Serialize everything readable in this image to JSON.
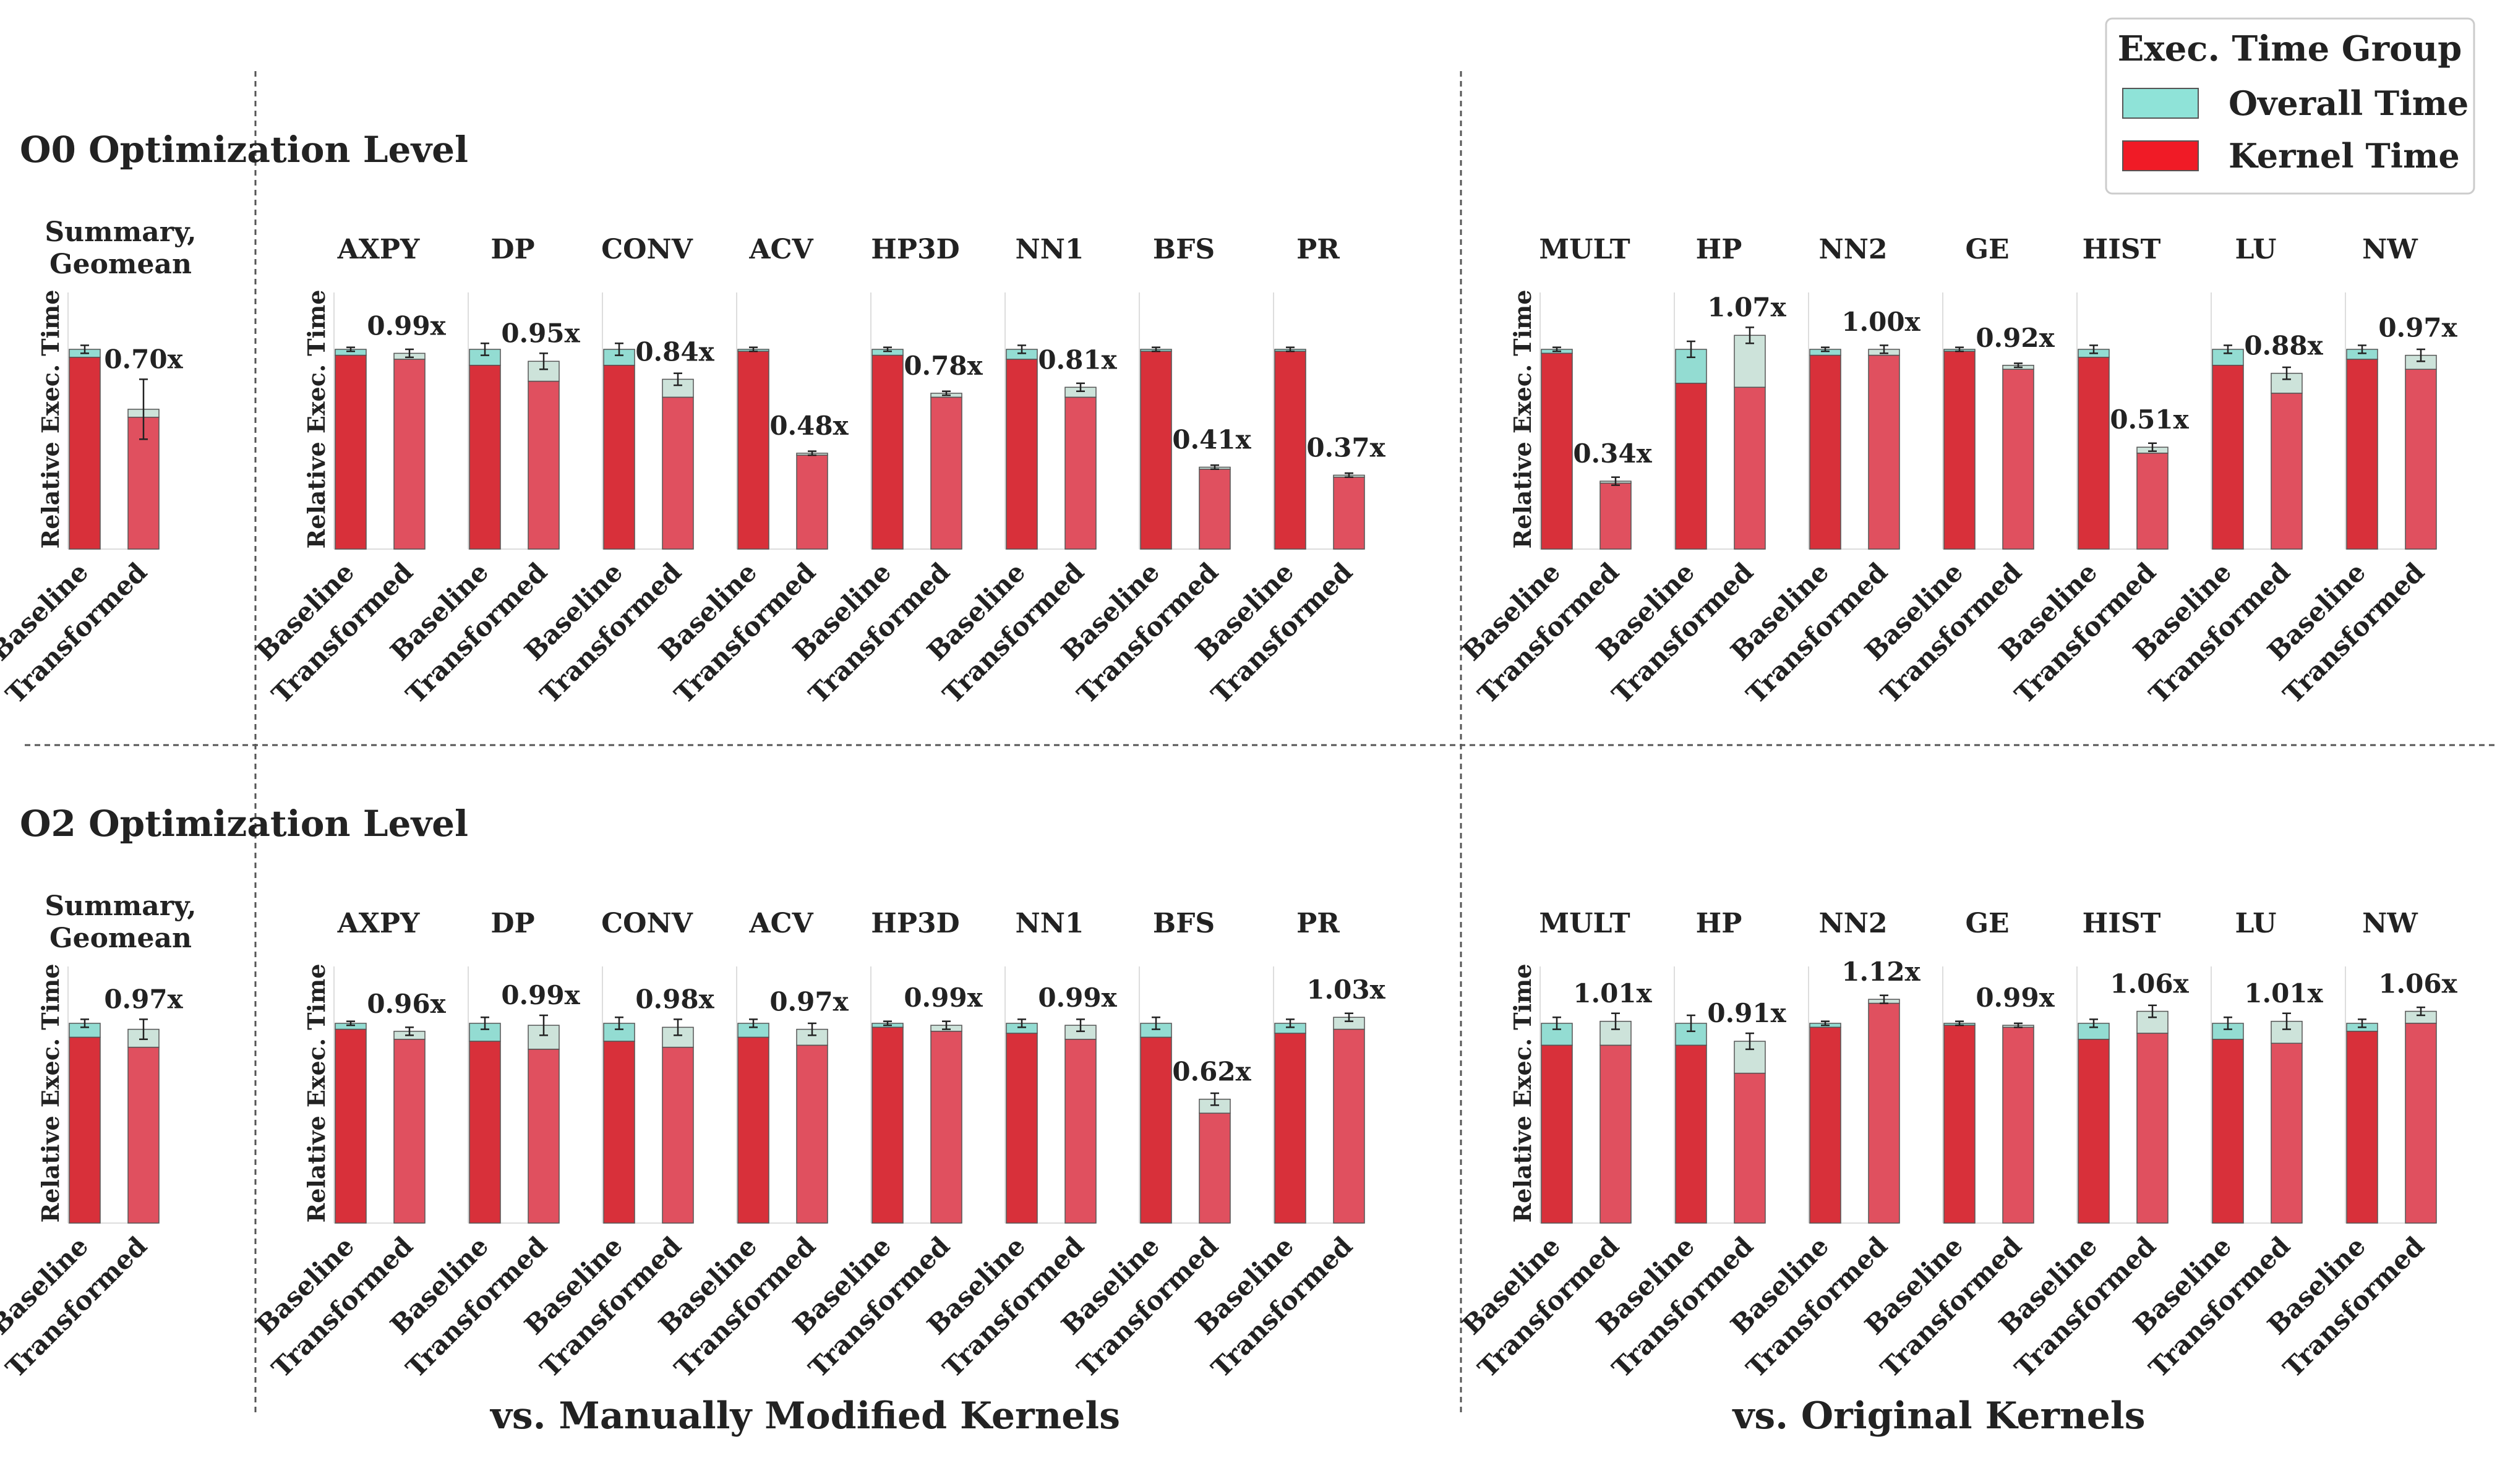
{
  "legend": {
    "title": "Exec. Time Group",
    "items": [
      {
        "label": "Overall Time",
        "color": "#8fe3d8"
      },
      {
        "label": "Kernel Time",
        "color": "#f01b26"
      }
    ]
  },
  "colors": {
    "baseline_kernel": "#d8303a",
    "transformed_kernel": "#e0505f",
    "baseline_overall": "#93dcd2",
    "transformed_overall": "#cde3da",
    "edge": "#555555"
  },
  "group_labels": {
    "manual": "vs. Manually Modified Kernels",
    "original": "vs. Original Kernels"
  },
  "chart_data": {
    "type": "bar",
    "stacked": true,
    "categories": [
      "Baseline",
      "Transformed"
    ],
    "ylabel": "Relative Exec. Time",
    "ylim": [
      0,
      1.25
    ],
    "grid": false,
    "legend_position": "top-right",
    "levels": [
      {
        "title": "O0 Optimization Level",
        "summary": {
          "title_line1": "Summary,",
          "title_line2": "Geomean",
          "speedup": "0.70x",
          "baseline": {
            "overall": 1.0,
            "kernel": 0.96,
            "err": 0.02
          },
          "transformed": {
            "overall": 0.7,
            "kernel": 0.66,
            "err": 0.15
          }
        },
        "manual": [
          {
            "name": "AXPY",
            "speedup": "0.99x",
            "baseline": {
              "overall": 1.0,
              "kernel": 0.97,
              "err": 0.01
            },
            "transformed": {
              "overall": 0.98,
              "kernel": 0.95,
              "err": 0.02
            }
          },
          {
            "name": "DP",
            "speedup": "0.95x",
            "baseline": {
              "overall": 1.0,
              "kernel": 0.92,
              "err": 0.03
            },
            "transformed": {
              "overall": 0.94,
              "kernel": 0.84,
              "err": 0.04
            }
          },
          {
            "name": "CONV",
            "speedup": "0.84x",
            "baseline": {
              "overall": 1.0,
              "kernel": 0.92,
              "err": 0.03
            },
            "transformed": {
              "overall": 0.85,
              "kernel": 0.76,
              "err": 0.03
            }
          },
          {
            "name": "ACV",
            "speedup": "0.48x",
            "baseline": {
              "overall": 1.0,
              "kernel": 0.99,
              "err": 0.01
            },
            "transformed": {
              "overall": 0.48,
              "kernel": 0.47,
              "err": 0.01
            }
          },
          {
            "name": "HP3D",
            "speedup": "0.78x",
            "baseline": {
              "overall": 1.0,
              "kernel": 0.97,
              "err": 0.01
            },
            "transformed": {
              "overall": 0.78,
              "kernel": 0.76,
              "err": 0.01
            }
          },
          {
            "name": "NN1",
            "speedup": "0.81x",
            "baseline": {
              "overall": 1.0,
              "kernel": 0.95,
              "err": 0.02
            },
            "transformed": {
              "overall": 0.81,
              "kernel": 0.76,
              "err": 0.02
            }
          },
          {
            "name": "BFS",
            "speedup": "0.41x",
            "baseline": {
              "overall": 1.0,
              "kernel": 0.99,
              "err": 0.01
            },
            "transformed": {
              "overall": 0.41,
              "kernel": 0.4,
              "err": 0.01
            }
          },
          {
            "name": "PR",
            "speedup": "0.37x",
            "baseline": {
              "overall": 1.0,
              "kernel": 0.99,
              "err": 0.01
            },
            "transformed": {
              "overall": 0.37,
              "kernel": 0.36,
              "err": 0.01
            }
          }
        ],
        "original": [
          {
            "name": "MULT",
            "speedup": "0.34x",
            "baseline": {
              "overall": 1.0,
              "kernel": 0.98,
              "err": 0.01
            },
            "transformed": {
              "overall": 0.34,
              "kernel": 0.33,
              "err": 0.02
            }
          },
          {
            "name": "HP",
            "speedup": "1.07x",
            "baseline": {
              "overall": 1.0,
              "kernel": 0.83,
              "err": 0.04
            },
            "transformed": {
              "overall": 1.07,
              "kernel": 0.81,
              "err": 0.04
            }
          },
          {
            "name": "NN2",
            "speedup": "1.00x",
            "baseline": {
              "overall": 1.0,
              "kernel": 0.97,
              "err": 0.01
            },
            "transformed": {
              "overall": 1.0,
              "kernel": 0.97,
              "err": 0.02
            }
          },
          {
            "name": "GE",
            "speedup": "0.92x",
            "baseline": {
              "overall": 1.0,
              "kernel": 0.99,
              "err": 0.01
            },
            "transformed": {
              "overall": 0.92,
              "kernel": 0.9,
              "err": 0.01
            }
          },
          {
            "name": "HIST",
            "speedup": "0.51x",
            "baseline": {
              "overall": 1.0,
              "kernel": 0.96,
              "err": 0.02
            },
            "transformed": {
              "overall": 0.51,
              "kernel": 0.48,
              "err": 0.02
            }
          },
          {
            "name": "LU",
            "speedup": "0.88x",
            "baseline": {
              "overall": 1.0,
              "kernel": 0.92,
              "err": 0.02
            },
            "transformed": {
              "overall": 0.88,
              "kernel": 0.78,
              "err": 0.03
            }
          },
          {
            "name": "NW",
            "speedup": "0.97x",
            "baseline": {
              "overall": 1.0,
              "kernel": 0.95,
              "err": 0.02
            },
            "transformed": {
              "overall": 0.97,
              "kernel": 0.9,
              "err": 0.03
            }
          }
        ]
      },
      {
        "title": "O2 Optimization Level",
        "summary": {
          "title_line1": "Summary,",
          "title_line2": "Geomean",
          "speedup": "0.97x",
          "baseline": {
            "overall": 1.0,
            "kernel": 0.93,
            "err": 0.02
          },
          "transformed": {
            "overall": 0.97,
            "kernel": 0.88,
            "err": 0.05
          }
        },
        "manual": [
          {
            "name": "AXPY",
            "speedup": "0.96x",
            "baseline": {
              "overall": 1.0,
              "kernel": 0.97,
              "err": 0.01
            },
            "transformed": {
              "overall": 0.96,
              "kernel": 0.92,
              "err": 0.02
            }
          },
          {
            "name": "DP",
            "speedup": "0.99x",
            "baseline": {
              "overall": 1.0,
              "kernel": 0.91,
              "err": 0.03
            },
            "transformed": {
              "overall": 0.99,
              "kernel": 0.87,
              "err": 0.05
            }
          },
          {
            "name": "CONV",
            "speedup": "0.98x",
            "baseline": {
              "overall": 1.0,
              "kernel": 0.91,
              "err": 0.03
            },
            "transformed": {
              "overall": 0.98,
              "kernel": 0.88,
              "err": 0.04
            }
          },
          {
            "name": "ACV",
            "speedup": "0.97x",
            "baseline": {
              "overall": 1.0,
              "kernel": 0.93,
              "err": 0.02
            },
            "transformed": {
              "overall": 0.97,
              "kernel": 0.89,
              "err": 0.03
            }
          },
          {
            "name": "HP3D",
            "speedup": "0.99x",
            "baseline": {
              "overall": 1.0,
              "kernel": 0.98,
              "err": 0.01
            },
            "transformed": {
              "overall": 0.99,
              "kernel": 0.96,
              "err": 0.02
            }
          },
          {
            "name": "NN1",
            "speedup": "0.99x",
            "baseline": {
              "overall": 1.0,
              "kernel": 0.95,
              "err": 0.02
            },
            "transformed": {
              "overall": 0.99,
              "kernel": 0.92,
              "err": 0.03
            }
          },
          {
            "name": "BFS",
            "speedup": "0.62x",
            "baseline": {
              "overall": 1.0,
              "kernel": 0.93,
              "err": 0.03
            },
            "transformed": {
              "overall": 0.62,
              "kernel": 0.55,
              "err": 0.03
            }
          },
          {
            "name": "PR",
            "speedup": "1.03x",
            "baseline": {
              "overall": 1.0,
              "kernel": 0.95,
              "err": 0.02
            },
            "transformed": {
              "overall": 1.03,
              "kernel": 0.97,
              "err": 0.02
            }
          }
        ],
        "original": [
          {
            "name": "MULT",
            "speedup": "1.01x",
            "baseline": {
              "overall": 1.0,
              "kernel": 0.89,
              "err": 0.03
            },
            "transformed": {
              "overall": 1.01,
              "kernel": 0.89,
              "err": 0.04
            }
          },
          {
            "name": "HP",
            "speedup": "0.91x",
            "baseline": {
              "overall": 1.0,
              "kernel": 0.89,
              "err": 0.04
            },
            "transformed": {
              "overall": 0.91,
              "kernel": 0.75,
              "err": 0.04
            }
          },
          {
            "name": "NN2",
            "speedup": "1.12x",
            "baseline": {
              "overall": 1.0,
              "kernel": 0.98,
              "err": 0.01
            },
            "transformed": {
              "overall": 1.12,
              "kernel": 1.1,
              "err": 0.02
            }
          },
          {
            "name": "GE",
            "speedup": "0.99x",
            "baseline": {
              "overall": 1.0,
              "kernel": 0.99,
              "err": 0.01
            },
            "transformed": {
              "overall": 0.99,
              "kernel": 0.98,
              "err": 0.01
            }
          },
          {
            "name": "HIST",
            "speedup": "1.06x",
            "baseline": {
              "overall": 1.0,
              "kernel": 0.92,
              "err": 0.02
            },
            "transformed": {
              "overall": 1.06,
              "kernel": 0.95,
              "err": 0.03
            }
          },
          {
            "name": "LU",
            "speedup": "1.01x",
            "baseline": {
              "overall": 1.0,
              "kernel": 0.92,
              "err": 0.03
            },
            "transformed": {
              "overall": 1.01,
              "kernel": 0.9,
              "err": 0.04
            }
          },
          {
            "name": "NW",
            "speedup": "1.06x",
            "baseline": {
              "overall": 1.0,
              "kernel": 0.96,
              "err": 0.02
            },
            "transformed": {
              "overall": 1.06,
              "kernel": 1.0,
              "err": 0.02
            }
          }
        ]
      }
    ]
  }
}
